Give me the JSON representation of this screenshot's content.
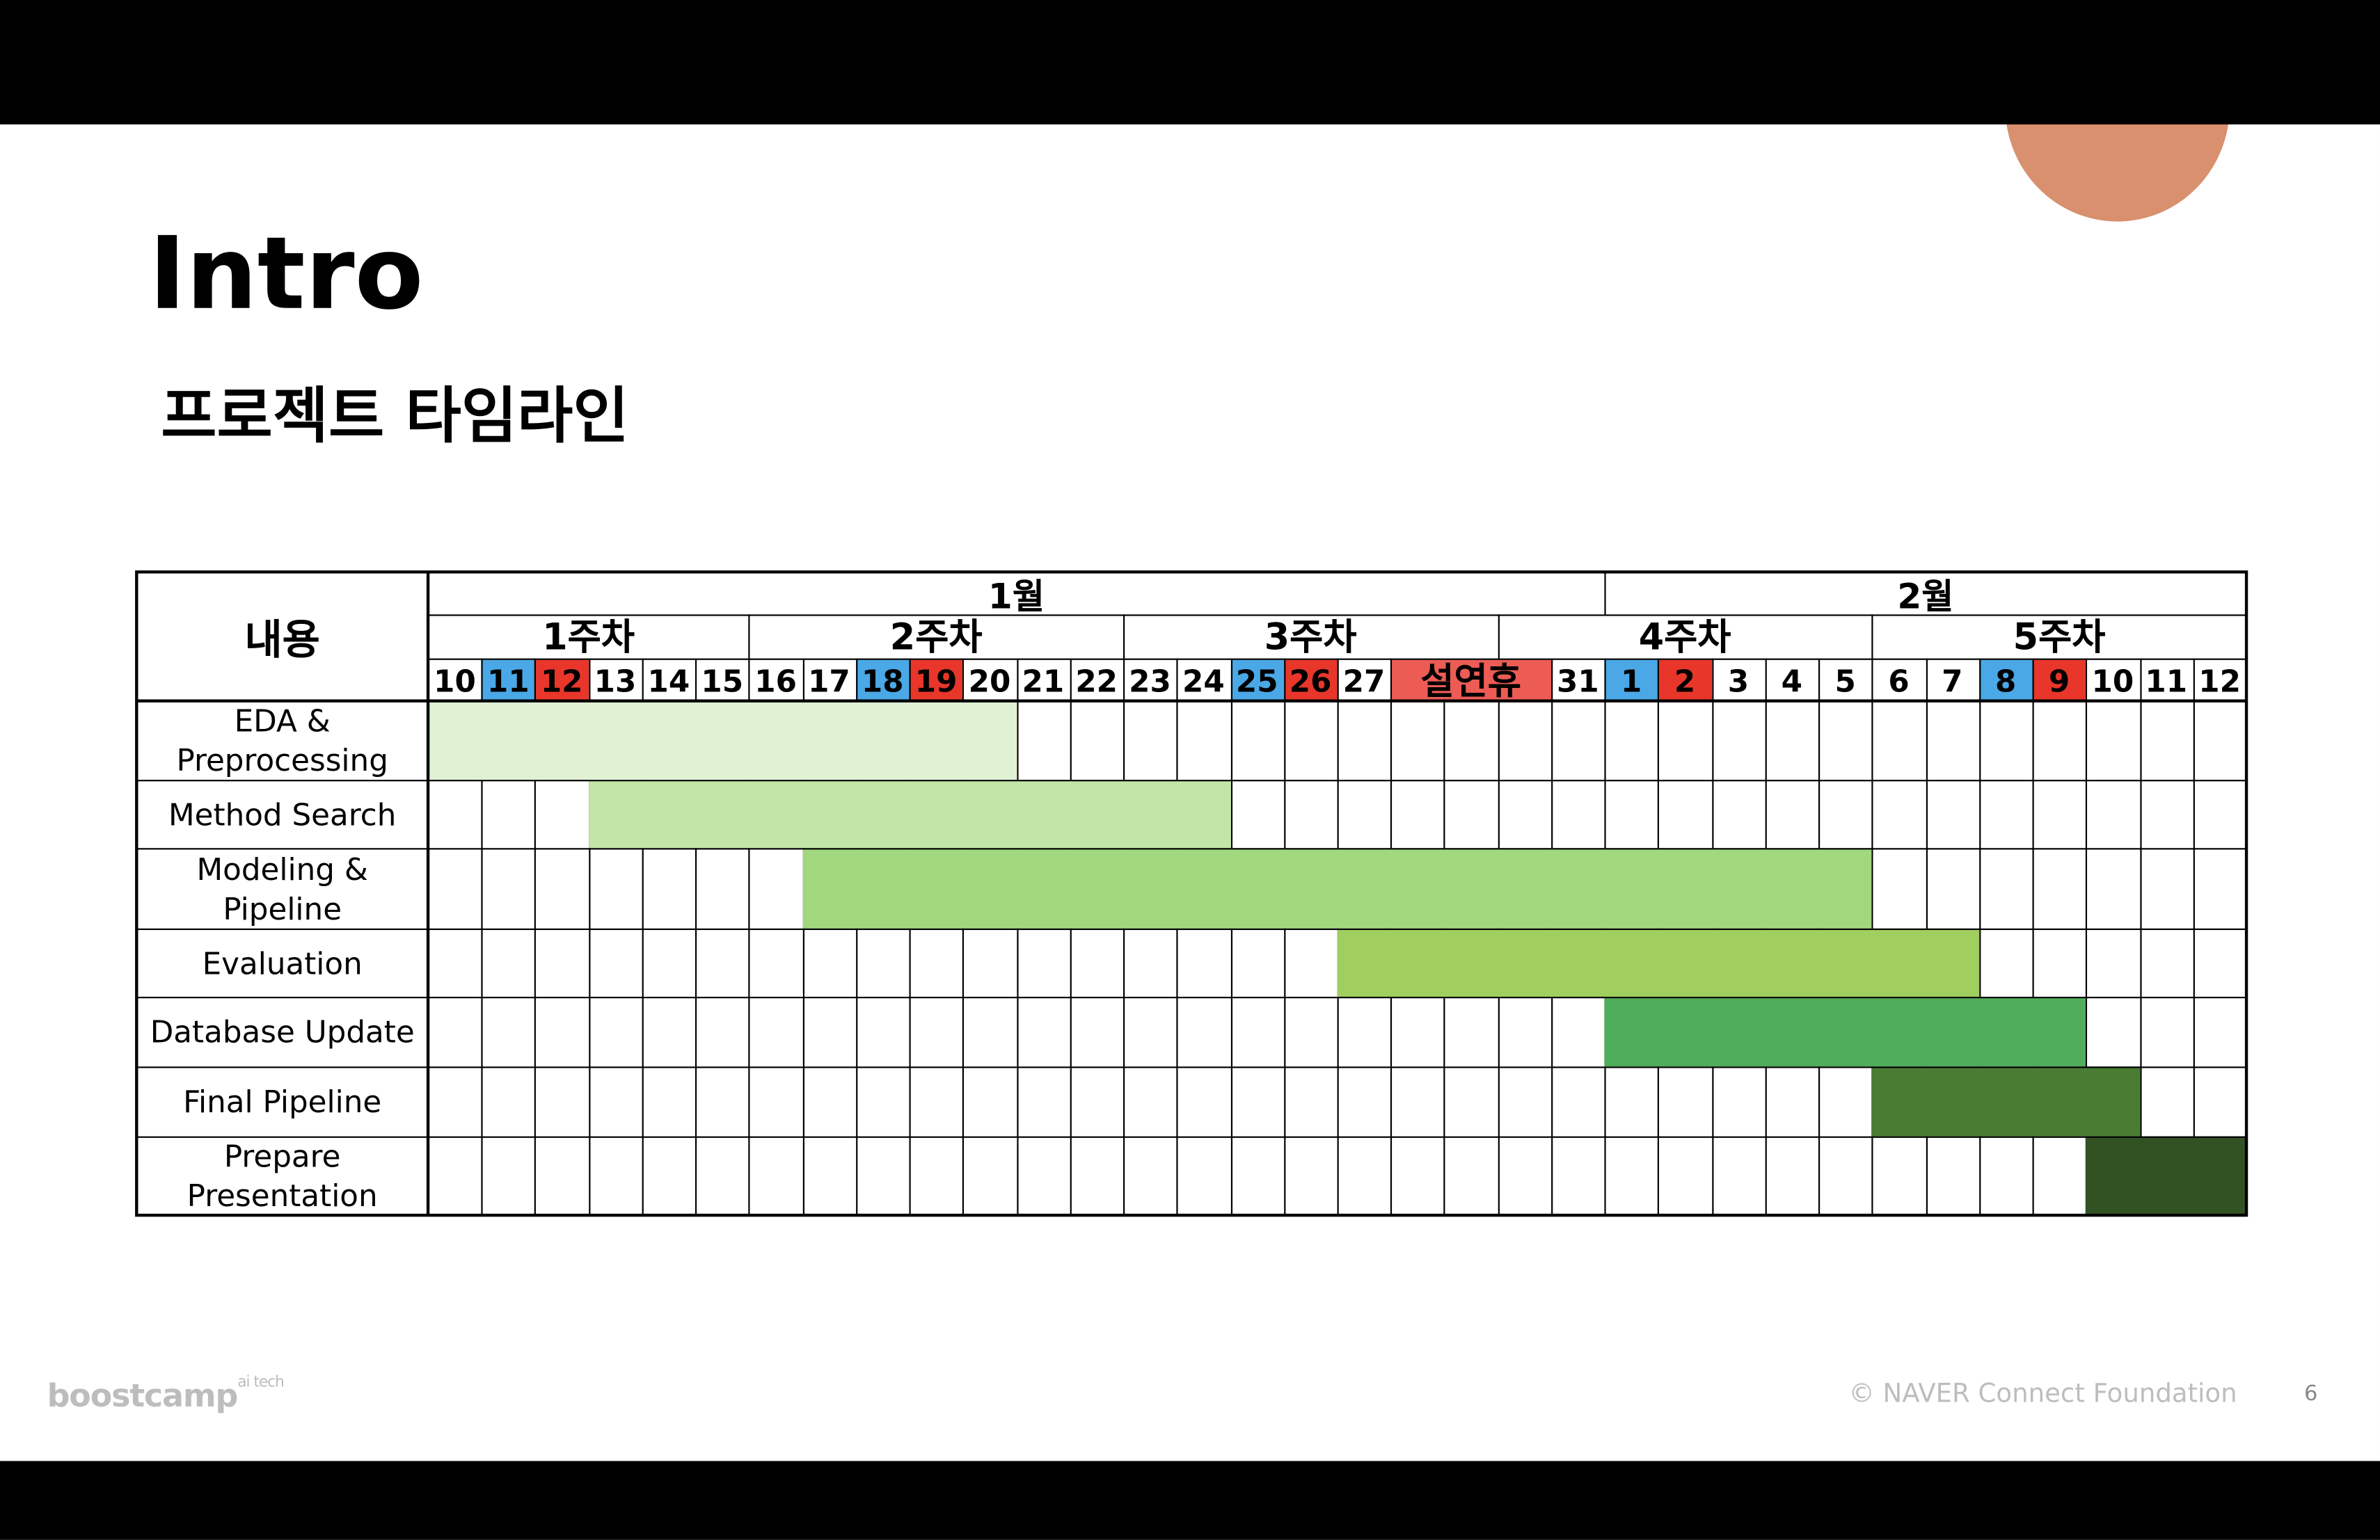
{
  "slide": {
    "title": "Intro",
    "subtitle": "프로젝트 타임라인",
    "footer_logo": "boostcamp",
    "footer_logo_sup": "ai tech",
    "footer_copyright": "© NAVER Connect Foundation",
    "page_number": "6",
    "accent_circle_color": "#d9906f"
  },
  "chart_data": {
    "type": "gantt",
    "corner_label": "내용",
    "months": [
      {
        "label": "1월",
        "days": 22
      },
      {
        "label": "2월",
        "days": 12
      }
    ],
    "weeks": [
      {
        "label": "1주차",
        "days": 6
      },
      {
        "label": "2주차",
        "days": 7
      },
      {
        "label": "3주차",
        "days": 7
      },
      {
        "label": "4주차",
        "days": 7
      },
      {
        "label": "5주차",
        "days": 7
      }
    ],
    "day_columns": [
      {
        "label": "10",
        "type": "normal"
      },
      {
        "label": "11",
        "type": "sat"
      },
      {
        "label": "12",
        "type": "sun"
      },
      {
        "label": "13",
        "type": "normal"
      },
      {
        "label": "14",
        "type": "normal"
      },
      {
        "label": "15",
        "type": "normal"
      },
      {
        "label": "16",
        "type": "normal"
      },
      {
        "label": "17",
        "type": "normal"
      },
      {
        "label": "18",
        "type": "sat"
      },
      {
        "label": "19",
        "type": "sun"
      },
      {
        "label": "20",
        "type": "normal"
      },
      {
        "label": "21",
        "type": "normal"
      },
      {
        "label": "22",
        "type": "normal"
      },
      {
        "label": "23",
        "type": "normal"
      },
      {
        "label": "24",
        "type": "normal"
      },
      {
        "label": "25",
        "type": "sat"
      },
      {
        "label": "26",
        "type": "sun"
      },
      {
        "label": "27",
        "type": "normal"
      },
      {
        "label": "설연휴",
        "type": "holiday",
        "days": 3
      },
      {
        "label": "31",
        "type": "normal"
      },
      {
        "label": "1",
        "type": "sat"
      },
      {
        "label": "2",
        "type": "sun"
      },
      {
        "label": "3",
        "type": "normal"
      },
      {
        "label": "4",
        "type": "normal"
      },
      {
        "label": "5",
        "type": "normal"
      },
      {
        "label": "6",
        "type": "normal"
      },
      {
        "label": "7",
        "type": "normal"
      },
      {
        "label": "8",
        "type": "sat"
      },
      {
        "label": "9",
        "type": "sun"
      },
      {
        "label": "10",
        "type": "normal"
      },
      {
        "label": "11",
        "type": "normal"
      },
      {
        "label": "12",
        "type": "normal"
      }
    ],
    "day_colors": {
      "normal": "#ffffff",
      "sat": "#4aa8e6",
      "sun": "#e8362a",
      "holiday": "#ec5c55"
    },
    "tasks": [
      {
        "name": "EDA &\nPreprocessing",
        "start": "1/10",
        "end": "1/20",
        "color": "#e0f1d4"
      },
      {
        "name": "Method Search",
        "start": "1/13",
        "end": "1/24",
        "color": "#c3e5a6"
      },
      {
        "name": "Modeling &\nPipeline",
        "start": "1/17",
        "end": "2/5",
        "color": "#a1d77d"
      },
      {
        "name": "Evaluation",
        "start": "1/27",
        "end": "2/7",
        "color": "#a0ce5f"
      },
      {
        "name": "Database Update",
        "start": "2/1",
        "end": "2/9",
        "color": "#4fad5b"
      },
      {
        "name": "Final Pipeline",
        "start": "2/6",
        "end": "2/10",
        "color": "#4a7d33"
      },
      {
        "name": "Prepare\nPresentation",
        "start": "2/10",
        "end": "2/12",
        "color": "#335223"
      }
    ]
  }
}
